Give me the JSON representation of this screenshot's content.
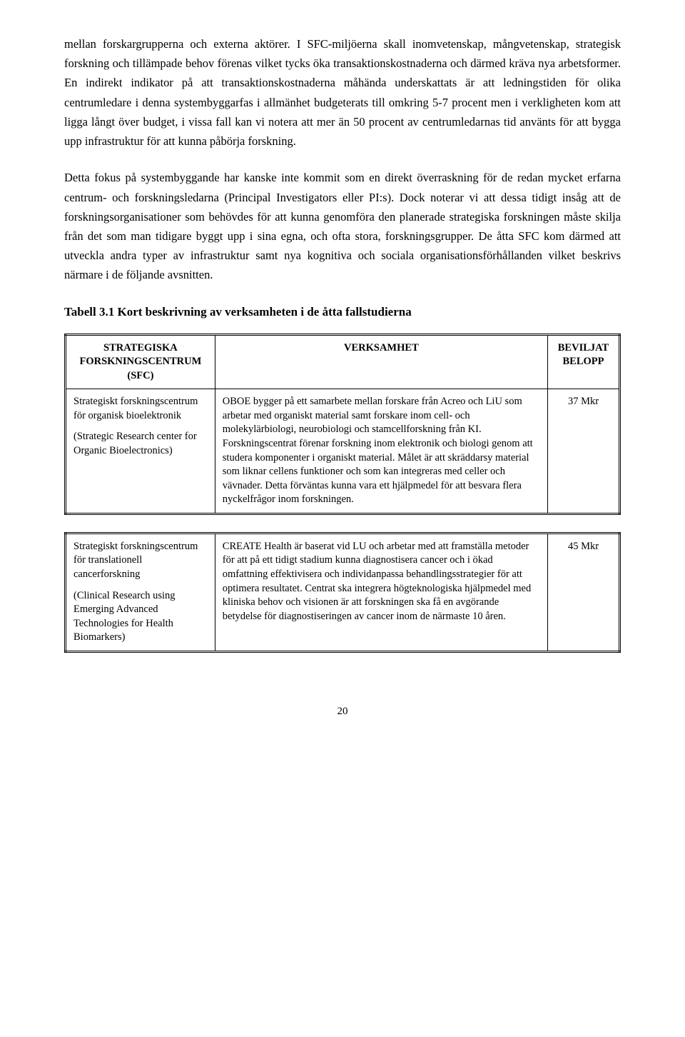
{
  "paragraphs": {
    "p1": "mellan forskargrupperna och externa aktörer. I SFC-miljöerna skall inomvetenskap, mångvetenskap, strategisk forskning och tillämpade behov förenas vilket tycks öka transaktionskostnaderna och därmed kräva nya arbetsformer. En indirekt indikator på att transaktionskostnaderna måhända underskattats är att ledningstiden för olika centrumledare i denna systembyggarfas i allmänhet budgeterats till omkring 5-7 procent men i verkligheten kom att ligga långt över budget, i vissa fall kan vi notera att mer än 50 procent av centrumledarnas tid använts för att bygga upp infrastruktur för att kunna påbörja forskning.",
    "p2": "Detta fokus på systembyggande har kanske inte kommit som en direkt överraskning för de redan mycket erfarna centrum- och forskningsledarna (Principal Investigators eller PI:s). Dock noterar vi att dessa tidigt insåg att de forskningsorganisationer som behövdes för att kunna genomföra den planerade strategiska forskningen måste skilja från det som man tidigare byggt upp i sina egna, och ofta stora, forskningsgrupper. De åtta SFC kom därmed att utveckla andra typer av infrastruktur samt nya kognitiva och sociala organisationsförhållanden vilket beskrivs närmare i de följande avsnitten."
  },
  "heading": "Tabell 3.1 Kort beskrivning av verksamheten i de åtta fallstudierna",
  "table": {
    "headers": {
      "col1": "STRATEGISKA FORSKNINGSCENTRUM (SFC)",
      "col2": "VERKSAMHET",
      "col3": "BEVILJAT BELOPP"
    },
    "rows": [
      {
        "col1_a": "Strategiskt forskningscentrum för organisk bioelektronik",
        "col1_b": "(Strategic Research center for Organic Bioelectronics)",
        "col2": "OBOE bygger på ett samarbete mellan forskare från Acreo och LiU som arbetar med organiskt material samt forskare inom cell- och molekylärbiologi, neurobiologi och stamcellforskning från KI. Forskningscentrat förenar forskning inom elektronik och biologi genom att studera komponenter i organiskt material. Målet är att skräddarsy material som liknar cellens funktioner och som kan integreras med celler och vävnader. Detta förväntas kunna vara ett hjälpmedel för att besvara flera nyckelfrågor inom forskningen.",
        "col3": "37 Mkr"
      },
      {
        "col1_a": "Strategiskt forskningscentrum för translationell cancerforskning",
        "col1_b": "(Clinical Research using Emerging Advanced Technologies for Health Biomarkers)",
        "col2": "CREATE Health är baserat vid LU och arbetar med att framställa metoder för att på ett tidigt stadium kunna diagnostisera cancer och i ökad omfattning effektivisera och individanpassa behandlingsstrategier för att optimera resultatet. Centrat ska integrera högteknologiska hjälpmedel med kliniska behov och visionen är att forskningen ska få en avgörande betydelse för diagnostiseringen av cancer inom de närmaste 10 åren.",
        "col3": "45 Mkr"
      }
    ]
  },
  "page_number": "20"
}
